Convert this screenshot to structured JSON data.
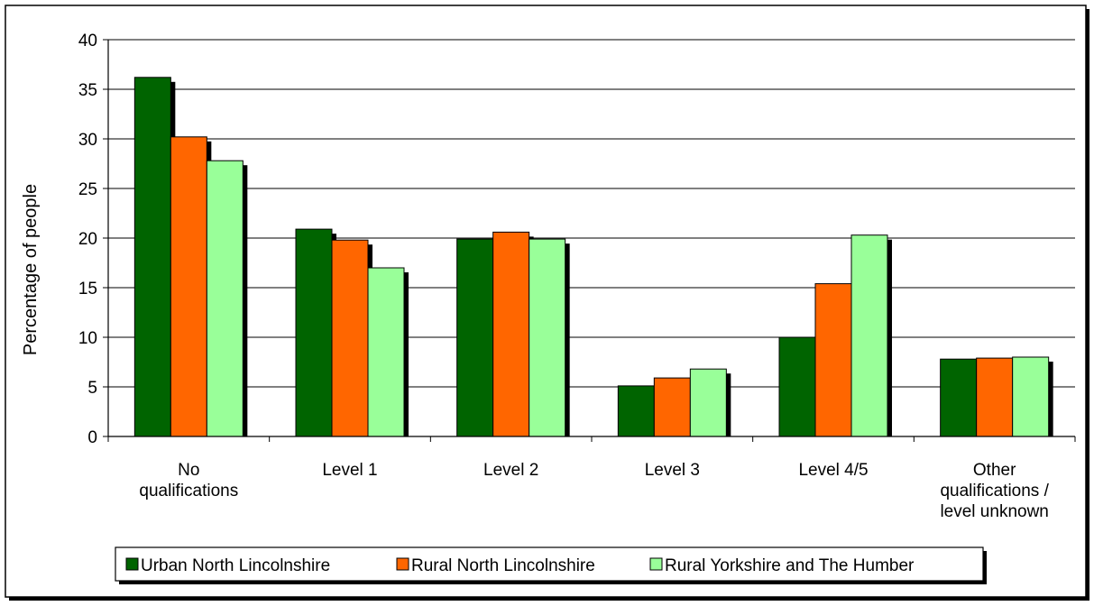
{
  "chart_data": {
    "type": "bar",
    "title": "",
    "xlabel": "",
    "ylabel": "Percentage of people",
    "ylim": [
      0,
      40
    ],
    "yticks": [
      0,
      5,
      10,
      15,
      20,
      25,
      30,
      35,
      40
    ],
    "grid": true,
    "legend_position": "bottom",
    "categories": [
      [
        "No",
        "qualifications"
      ],
      [
        "Level 1"
      ],
      [
        "Level 2"
      ],
      [
        "Level 3"
      ],
      [
        "Level 4/5"
      ],
      [
        "Other",
        "qualifications /",
        "level unknown"
      ]
    ],
    "series": [
      {
        "name": "Urban North Lincolnshire",
        "color": "#006400",
        "values": [
          36.2,
          20.9,
          19.9,
          5.1,
          10.0,
          7.8
        ]
      },
      {
        "name": "Rural North Lincolnshire",
        "color": "#FF6600",
        "values": [
          30.2,
          19.8,
          20.6,
          5.9,
          15.4,
          7.9
        ]
      },
      {
        "name": "Rural Yorkshire and The Humber",
        "color": "#99FF99",
        "values": [
          27.8,
          17.0,
          19.9,
          6.8,
          20.3,
          8.0
        ]
      }
    ]
  }
}
